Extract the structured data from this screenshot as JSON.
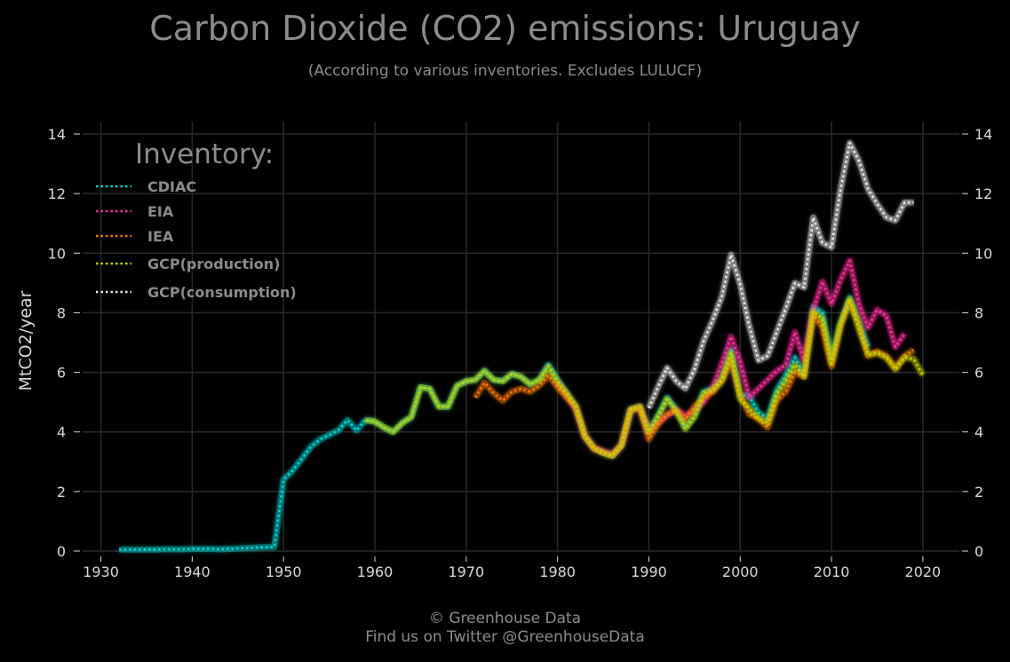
{
  "header": {
    "title": "Carbon Dioxide (CO2) emissions: Uruguay",
    "subtitle": "(According to various inventories. Excludes LULUCF)"
  },
  "footer": {
    "line1": "© Greenhouse Data",
    "line2": "Find us on Twitter @GreenhouseData"
  },
  "chart_data": {
    "type": "line",
    "title": "Carbon Dioxide (CO2) emissions: Uruguay",
    "subtitle": "(According to various inventories. Excludes LULUCF)",
    "ylabel": "MtCO2/year",
    "xlim": [
      1928,
      2024
    ],
    "ylim": [
      0,
      14
    ],
    "x_ticks": [
      1930,
      1940,
      1950,
      1960,
      1970,
      1980,
      1990,
      2000,
      2010,
      2020
    ],
    "y_ticks": [
      0,
      2,
      4,
      6,
      8,
      10,
      12,
      14
    ],
    "grid": true,
    "legend": {
      "title": "Inventory:",
      "position": "top-left"
    },
    "series": [
      {
        "name": "CDIAC",
        "color": "#00d6d6",
        "x": [
          1932,
          1933,
          1934,
          1935,
          1936,
          1937,
          1938,
          1939,
          1940,
          1941,
          1942,
          1943,
          1944,
          1945,
          1946,
          1947,
          1948,
          1949,
          1950,
          1951,
          1952,
          1953,
          1954,
          1955,
          1956,
          1957,
          1958,
          1959,
          1960,
          1961,
          1962,
          1963,
          1964,
          1965,
          1966,
          1967,
          1968,
          1969,
          1970,
          1971,
          1972,
          1973,
          1974,
          1975,
          1976,
          1977,
          1978,
          1979,
          1980,
          1981,
          1982,
          1983,
          1984,
          1985,
          1986,
          1987,
          1988,
          1989,
          1990,
          1991,
          1992,
          1993,
          1994,
          1995,
          1996,
          1997,
          1998,
          1999,
          2000,
          2001,
          2002,
          2003,
          2004,
          2005,
          2006,
          2007,
          2008,
          2009,
          2010,
          2011,
          2012,
          2013,
          2014
        ],
        "values": [
          0.05,
          0.05,
          0.05,
          0.05,
          0.05,
          0.06,
          0.06,
          0.06,
          0.07,
          0.07,
          0.07,
          0.06,
          0.07,
          0.09,
          0.1,
          0.12,
          0.13,
          0.14,
          2.4,
          2.7,
          3.1,
          3.5,
          3.75,
          3.9,
          4.05,
          4.4,
          4.05,
          4.4,
          4.35,
          4.15,
          4.0,
          4.3,
          4.5,
          5.5,
          5.45,
          4.85,
          4.85,
          5.55,
          5.7,
          5.75,
          6.05,
          5.75,
          5.7,
          5.95,
          5.85,
          5.6,
          5.75,
          6.25,
          5.75,
          5.3,
          4.85,
          3.85,
          3.45,
          3.3,
          3.2,
          3.55,
          4.75,
          4.85,
          4.0,
          4.55,
          5.15,
          4.75,
          4.15,
          4.55,
          5.35,
          5.45,
          5.8,
          6.75,
          5.25,
          5.2,
          4.65,
          4.45,
          5.4,
          5.9,
          6.5,
          5.95,
          8.2,
          8.0,
          6.45,
          7.65,
          8.5,
          7.75,
          6.85
        ]
      },
      {
        "name": "EIA",
        "color": "#ff2fa0",
        "x": [
          1980,
          1981,
          1982,
          1983,
          1984,
          1985,
          1986,
          1987,
          1988,
          1989,
          1990,
          1991,
          1992,
          1993,
          1994,
          1995,
          1996,
          1997,
          1998,
          1999,
          2000,
          2001,
          2002,
          2003,
          2004,
          2005,
          2006,
          2007,
          2008,
          2009,
          2010,
          2011,
          2012,
          2013,
          2014,
          2015,
          2016,
          2017,
          2018
        ],
        "values": [
          5.65,
          5.25,
          4.75,
          3.85,
          3.45,
          3.35,
          3.25,
          3.55,
          4.7,
          4.85,
          4.0,
          4.3,
          4.55,
          4.75,
          4.55,
          4.7,
          5.0,
          5.5,
          6.3,
          7.2,
          6.35,
          5.15,
          5.45,
          5.75,
          6.05,
          6.25,
          7.35,
          6.4,
          8.1,
          9.05,
          8.3,
          9.1,
          9.75,
          8.3,
          7.5,
          8.1,
          7.9,
          6.85,
          7.3
        ]
      },
      {
        "name": "IEA",
        "color": "#ff7a00",
        "x": [
          1971,
          1972,
          1973,
          1974,
          1975,
          1976,
          1977,
          1978,
          1979,
          1980,
          1981,
          1982,
          1983,
          1984,
          1985,
          1986,
          1987,
          1988,
          1989,
          1990,
          1991,
          1992,
          1993,
          1994,
          1995,
          1996,
          1997,
          1998,
          1999,
          2000,
          2001,
          2002,
          2003,
          2004,
          2005,
          2006,
          2007,
          2008,
          2009,
          2010,
          2011,
          2012,
          2013,
          2014,
          2015,
          2016,
          2017,
          2018,
          2019
        ],
        "values": [
          5.15,
          5.65,
          5.3,
          5.05,
          5.35,
          5.45,
          5.35,
          5.55,
          5.9,
          5.5,
          5.15,
          4.85,
          3.85,
          3.45,
          3.3,
          3.2,
          3.55,
          4.75,
          4.8,
          3.75,
          4.25,
          4.6,
          4.7,
          4.4,
          4.85,
          5.15,
          5.35,
          5.7,
          6.4,
          5.25,
          4.6,
          4.45,
          4.15,
          5.05,
          5.35,
          6.0,
          5.85,
          7.95,
          7.5,
          6.2,
          7.55,
          8.4,
          7.65,
          6.55,
          6.7,
          6.55,
          6.15,
          6.55,
          6.75
        ]
      },
      {
        "name": "GCP(production)",
        "color": "#c8d400",
        "x": [
          1959,
          1960,
          1961,
          1962,
          1963,
          1964,
          1965,
          1966,
          1967,
          1968,
          1969,
          1970,
          1971,
          1972,
          1973,
          1974,
          1975,
          1976,
          1977,
          1978,
          1979,
          1980,
          1981,
          1982,
          1983,
          1984,
          1985,
          1986,
          1987,
          1988,
          1989,
          1990,
          1991,
          1992,
          1993,
          1994,
          1995,
          1996,
          1997,
          1998,
          1999,
          2000,
          2001,
          2002,
          2003,
          2004,
          2005,
          2006,
          2007,
          2008,
          2009,
          2010,
          2011,
          2012,
          2013,
          2014,
          2015,
          2016,
          2017,
          2018,
          2019,
          2020
        ],
        "values": [
          4.4,
          4.35,
          4.15,
          4.0,
          4.3,
          4.5,
          5.5,
          5.45,
          4.85,
          4.85,
          5.55,
          5.7,
          5.75,
          6.05,
          5.75,
          5.7,
          5.95,
          5.85,
          5.6,
          5.75,
          6.2,
          5.7,
          5.3,
          4.85,
          3.85,
          3.45,
          3.3,
          3.2,
          3.55,
          4.75,
          4.85,
          4.0,
          4.5,
          5.1,
          4.7,
          4.1,
          4.5,
          5.3,
          5.4,
          5.75,
          6.65,
          5.1,
          4.8,
          4.45,
          4.3,
          5.25,
          5.7,
          6.25,
          5.85,
          8.05,
          7.8,
          6.3,
          7.65,
          8.45,
          7.45,
          6.6,
          6.65,
          6.5,
          6.1,
          6.5,
          6.45,
          5.9
        ]
      },
      {
        "name": "GCP(consumption)",
        "color": "#e8e8e8",
        "x": [
          1990,
          1991,
          1992,
          1993,
          1994,
          1995,
          1996,
          1997,
          1998,
          1999,
          2000,
          2001,
          2002,
          2003,
          2004,
          2005,
          2006,
          2007,
          2008,
          2009,
          2010,
          2011,
          2012,
          2013,
          2014,
          2015,
          2016,
          2017,
          2018,
          2019
        ],
        "values": [
          4.8,
          5.5,
          6.15,
          5.7,
          5.45,
          6.1,
          7.05,
          7.75,
          8.55,
          9.95,
          8.95,
          7.55,
          6.4,
          6.55,
          7.35,
          8.15,
          9.0,
          8.85,
          11.2,
          10.35,
          10.2,
          12.15,
          13.7,
          13.1,
          12.15,
          11.65,
          11.2,
          11.1,
          11.7,
          11.7
        ]
      }
    ]
  }
}
